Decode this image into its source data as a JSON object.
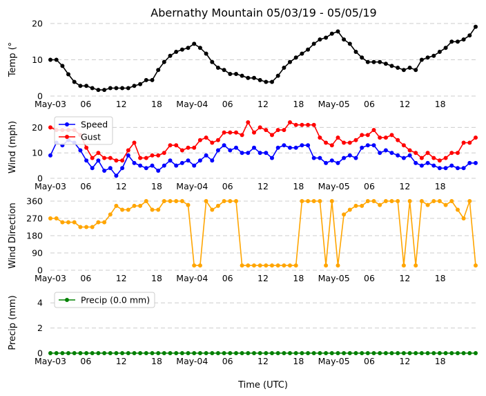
{
  "title": "Abernathy Mountain 05/03/19 - 05/05/19",
  "xlabel": "Time (UTC)",
  "x_tick_labels": [
    "May-03",
    "06",
    "12",
    "18",
    "May-04",
    "06",
    "12",
    "18",
    "May-05",
    "06",
    "12",
    "18"
  ],
  "x_tick_hours": [
    0,
    6,
    12,
    18,
    24,
    30,
    36,
    42,
    48,
    54,
    60,
    66
  ],
  "x_range_hours": [
    0,
    72
  ],
  "colors": {
    "temp": "#000000",
    "speed": "#0000ff",
    "gust": "#ff0000",
    "direction": "#ffa500",
    "precip": "#008000"
  },
  "chart_data": [
    {
      "type": "line",
      "ylabel": "Temp ( C)",
      "ylabel_degree": "°",
      "ylim": [
        0,
        20
      ],
      "yticks": [
        0,
        10,
        20
      ],
      "series": [
        {
          "name": "Temperature",
          "color": "#000000",
          "values": [
            10,
            10,
            8.3,
            6,
            3.9,
            2.8,
            2.8,
            2.2,
            1.7,
            1.7,
            2.2,
            2.2,
            2.2,
            2.2,
            2.8,
            3.3,
            4.4,
            4.4,
            7.2,
            9.4,
            11.1,
            12.2,
            12.8,
            13.3,
            14.4,
            13.3,
            11.7,
            9.4,
            7.8,
            7.2,
            6.1,
            6.1,
            5.6,
            5,
            5,
            4.4,
            3.9,
            3.9,
            5.6,
            7.8,
            9.4,
            10.6,
            11.7,
            12.8,
            14.4,
            15.6,
            16.1,
            17.2,
            17.8,
            15.6,
            14.4,
            12.2,
            10.6,
            9.4,
            9.4,
            9.4,
            8.9,
            8.3,
            7.8,
            7.2,
            7.8,
            7.2,
            10,
            10.6,
            11.1,
            12.2,
            13.3,
            15,
            15,
            15.6,
            16.7,
            19.1
          ]
        }
      ]
    },
    {
      "type": "line",
      "ylabel": "Wind (mph)",
      "ylim": [
        0,
        25
      ],
      "yticks": [
        0,
        10,
        20
      ],
      "legend": [
        "Speed",
        "Gust"
      ],
      "series": [
        {
          "name": "Speed",
          "color": "#0000ff",
          "values": [
            9,
            14,
            13,
            15,
            14,
            11,
            7,
            4,
            7,
            3,
            4,
            1,
            4,
            9,
            6,
            5,
            4,
            5,
            3,
            5,
            7,
            5,
            6,
            7,
            5,
            7,
            9,
            7,
            11,
            13,
            11,
            12,
            10,
            10,
            12,
            10,
            10,
            8,
            12,
            13,
            12,
            12,
            13,
            13,
            8,
            8,
            6,
            7,
            6,
            8,
            9,
            8,
            12,
            13,
            13,
            10,
            11,
            10,
            9,
            8,
            9,
            6,
            5,
            6,
            5,
            4,
            4,
            5,
            4,
            4,
            6,
            6
          ]
        },
        {
          "name": "Gust",
          "color": "#ff0000",
          "values": [
            20,
            19,
            19,
            19,
            19,
            17,
            12,
            8,
            10,
            8,
            8,
            7,
            7,
            11,
            14,
            8,
            8,
            9,
            9,
            10,
            13,
            13,
            11,
            12,
            12,
            15,
            16,
            14,
            15,
            18,
            18,
            18,
            17,
            22,
            18,
            20,
            19,
            17,
            19,
            19,
            22,
            21,
            21,
            21,
            21,
            16,
            14,
            13,
            16,
            14,
            14,
            15,
            17,
            17,
            19,
            16,
            16,
            17,
            15,
            13,
            11,
            10,
            8,
            10,
            8,
            7,
            8,
            10,
            10,
            14,
            14,
            16
          ]
        }
      ]
    },
    {
      "type": "line",
      "ylabel": "Wind Direction",
      "ylim": [
        0,
        360
      ],
      "yticks": [
        0,
        90,
        180,
        270,
        360
      ],
      "series": [
        {
          "name": "Direction",
          "color": "#ffa500",
          "values": [
            270,
            270,
            250,
            250,
            250,
            225,
            225,
            225,
            250,
            250,
            290,
            335,
            315,
            315,
            335,
            335,
            360,
            315,
            315,
            360,
            360,
            360,
            360,
            340,
            25,
            25,
            360,
            315,
            335,
            360,
            360,
            360,
            25,
            25,
            25,
            25,
            25,
            25,
            25,
            25,
            25,
            25,
            360,
            360,
            360,
            360,
            25,
            360,
            25,
            290,
            315,
            335,
            335,
            360,
            360,
            340,
            360,
            360,
            360,
            25,
            360,
            25,
            360,
            340,
            360,
            360,
            340,
            360,
            315,
            270,
            360,
            25
          ]
        }
      ]
    },
    {
      "type": "line",
      "ylabel": "Precip (mm)",
      "ylim": [
        0,
        5
      ],
      "yticks": [
        0,
        2,
        4
      ],
      "legend": [
        "Precip (0.0 mm)"
      ],
      "series": [
        {
          "name": "Precip (0.0 mm)",
          "color": "#008000",
          "values": [
            0,
            0,
            0,
            0,
            0,
            0,
            0,
            0,
            0,
            0,
            0,
            0,
            0,
            0,
            0,
            0,
            0,
            0,
            0,
            0,
            0,
            0,
            0,
            0,
            0,
            0,
            0,
            0,
            0,
            0,
            0,
            0,
            0,
            0,
            0,
            0,
            0,
            0,
            0,
            0,
            0,
            0,
            0,
            0,
            0,
            0,
            0,
            0,
            0,
            0,
            0,
            0,
            0,
            0,
            0,
            0,
            0,
            0,
            0,
            0,
            0,
            0,
            0,
            0,
            0,
            0,
            0,
            0,
            0,
            0,
            0,
            0
          ]
        }
      ]
    }
  ]
}
